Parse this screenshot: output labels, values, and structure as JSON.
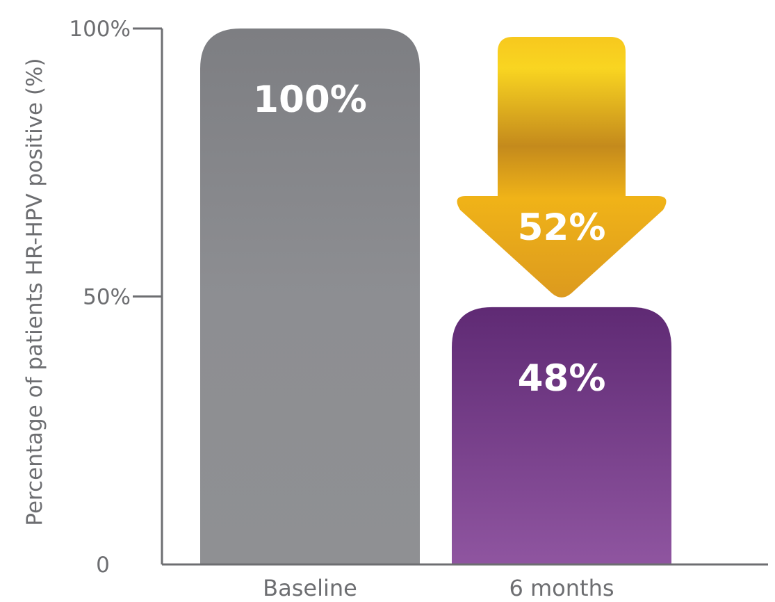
{
  "chart_data": {
    "type": "bar",
    "categories": [
      "Baseline",
      "6 months"
    ],
    "values": [
      100,
      48
    ],
    "value_labels": [
      "100%",
      "48%"
    ],
    "ylabel": "Percentage of patients HR-HPV positive (%)",
    "ylim": [
      0,
      100
    ],
    "yticks": [
      0,
      50,
      100
    ],
    "ytick_labels": [
      "0",
      "50%",
      "100%"
    ],
    "grid": false,
    "bar_colors": [
      "#8a8b8e",
      "#7b3f8c"
    ],
    "annotation": {
      "type": "down-arrow",
      "text": "52%",
      "value": 52,
      "color": "#e8a317"
    }
  }
}
